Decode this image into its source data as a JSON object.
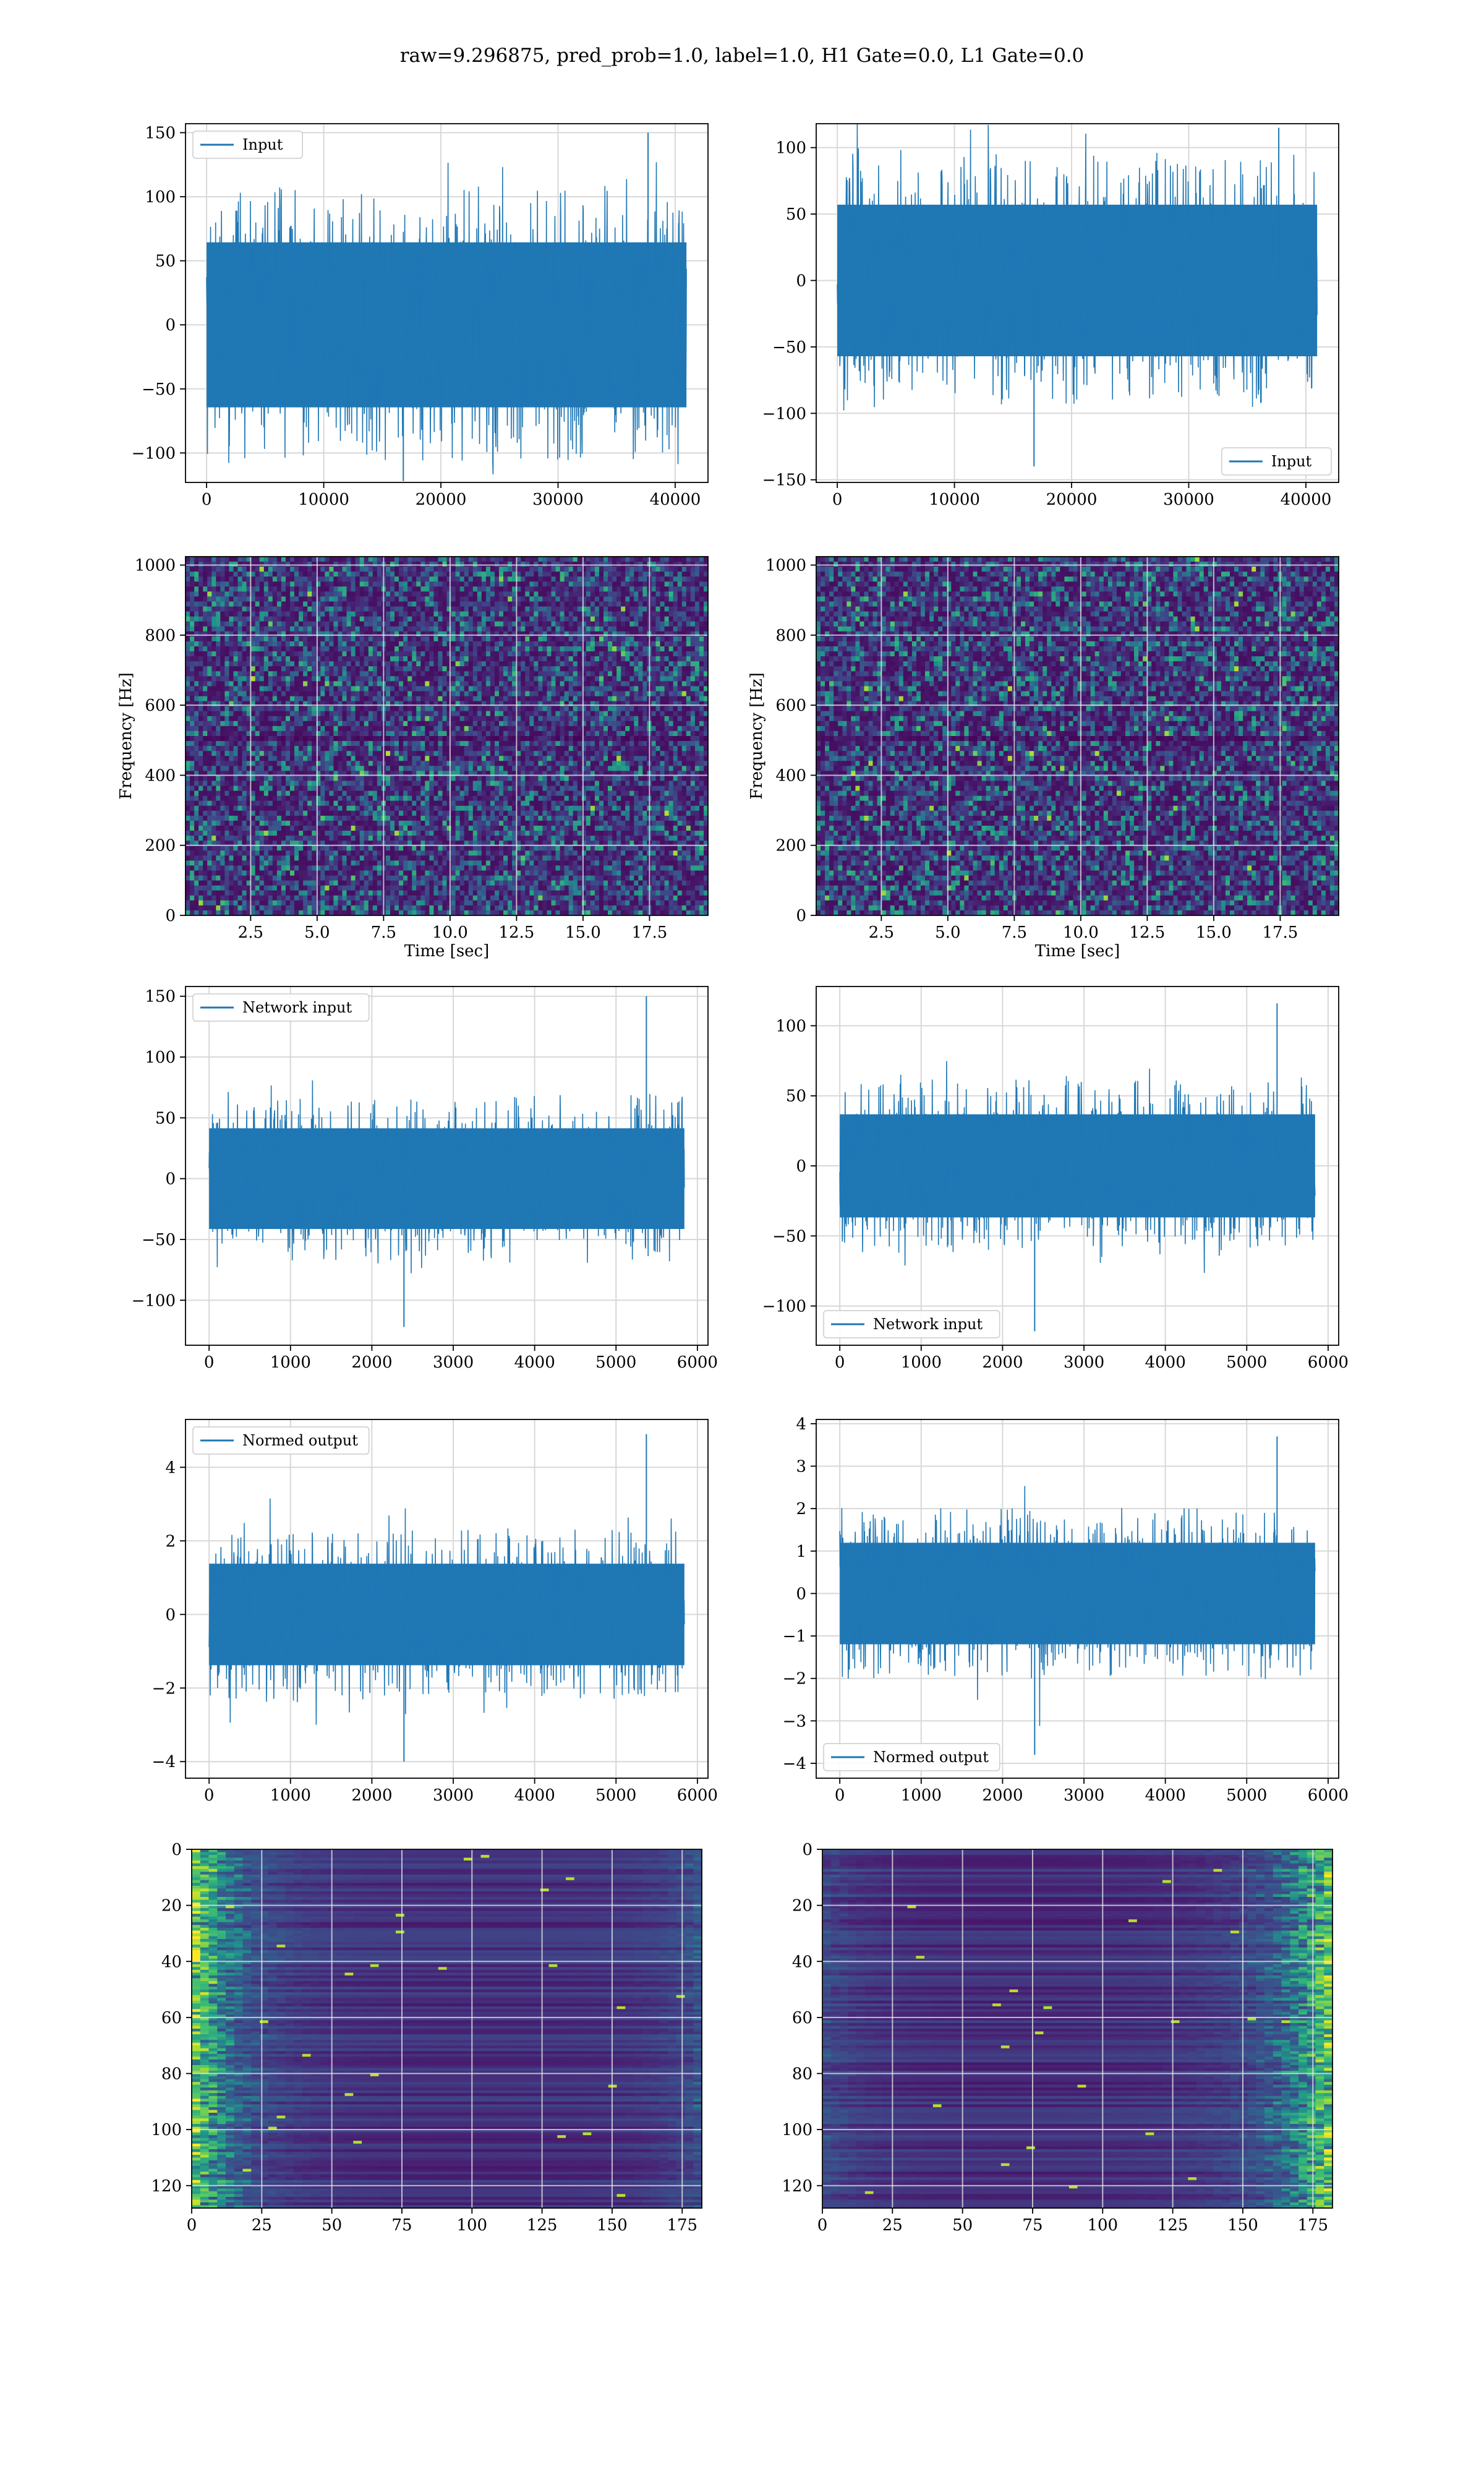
{
  "suptitle": "raw=9.296875, pred_prob=1.0, label=1.0, H1 Gate=0.0, L1 Gate=0.0",
  "colors": {
    "line": "#1f77b4",
    "grid": "#d8d8d8",
    "spine": "#000000",
    "viridis_low": "#440154",
    "viridis_mid": "#21918c",
    "viridis_high": "#fde725"
  },
  "chart_data": [
    {
      "id": "row1-left",
      "type": "line",
      "legend": "Input",
      "legend_loc": "upper left",
      "xlim": [
        -1800,
        42800
      ],
      "ylim": [
        -123,
        157
      ],
      "xticks": [
        0,
        10000,
        20000,
        30000,
        40000
      ],
      "xticklabels": [
        "0",
        "10000",
        "20000",
        "30000",
        "40000"
      ],
      "yticks": [
        -100,
        -50,
        0,
        50,
        100,
        150
      ],
      "yticklabels": [
        "−100",
        "−50",
        "0",
        "50",
        "100",
        "150"
      ],
      "signal": {
        "x_start": 0,
        "x_end": 40960,
        "core": 70,
        "peak_max": 150,
        "peak_min": -122
      },
      "grid": true
    },
    {
      "id": "row1-right",
      "type": "line",
      "legend": "Input",
      "legend_loc": "lower right",
      "xlim": [
        -1800,
        42800
      ],
      "ylim": [
        -152,
        118
      ],
      "xticks": [
        0,
        10000,
        20000,
        30000,
        40000
      ],
      "xticklabels": [
        "0",
        "10000",
        "20000",
        "30000",
        "40000"
      ],
      "yticks": [
        -150,
        -100,
        -50,
        0,
        50,
        100
      ],
      "yticklabels": [
        "−150",
        "−100",
        "−50",
        "0",
        "50",
        "100"
      ],
      "signal": {
        "x_start": 0,
        "x_end": 40960,
        "core": 62,
        "peak_max": 115,
        "peak_min": -140
      },
      "grid": true
    },
    {
      "id": "row2-left",
      "type": "heatmap",
      "xlabel": "Time [sec]",
      "ylabel": "Frequency [Hz]",
      "xlim": [
        0.05,
        19.7
      ],
      "ylim": [
        0,
        1024
      ],
      "xticks": [
        2.5,
        5.0,
        7.5,
        10.0,
        12.5,
        15.0,
        17.5
      ],
      "xticklabels": [
        "2.5",
        "5.0",
        "7.5",
        "10.0",
        "12.5",
        "15.0",
        "17.5"
      ],
      "yticks": [
        0,
        200,
        400,
        600,
        800,
        1000
      ],
      "yticklabels": [
        "0",
        "200",
        "400",
        "600",
        "800",
        "1000"
      ],
      "colormap": "viridis",
      "grid": true
    },
    {
      "id": "row2-right",
      "type": "heatmap",
      "xlabel": "Time [sec]",
      "ylabel": "Frequency [Hz]",
      "xlim": [
        0.05,
        19.7
      ],
      "ylim": [
        0,
        1024
      ],
      "xticks": [
        2.5,
        5.0,
        7.5,
        10.0,
        12.5,
        15.0,
        17.5
      ],
      "xticklabels": [
        "2.5",
        "5.0",
        "7.5",
        "10.0",
        "12.5",
        "15.0",
        "17.5"
      ],
      "yticks": [
        0,
        200,
        400,
        600,
        800,
        1000
      ],
      "yticklabels": [
        "0",
        "200",
        "400",
        "600",
        "800",
        "1000"
      ],
      "colormap": "viridis",
      "grid": true
    },
    {
      "id": "row3-left",
      "type": "line",
      "legend": "Network input",
      "legend_loc": "upper left",
      "xlim": [
        -290,
        6130
      ],
      "ylim": [
        -137,
        158
      ],
      "xticks": [
        0,
        1000,
        2000,
        3000,
        4000,
        5000,
        6000
      ],
      "xticklabels": [
        "0",
        "1000",
        "2000",
        "3000",
        "4000",
        "5000",
        "6000"
      ],
      "yticks": [
        -100,
        -50,
        0,
        50,
        100,
        150
      ],
      "yticklabels": [
        "−100",
        "−50",
        "0",
        "50",
        "100",
        "150"
      ],
      "signal": {
        "x_start": 0,
        "x_end": 5840,
        "core": 45,
        "peak_max": 150,
        "peak_min": -122
      },
      "grid": true
    },
    {
      "id": "row3-right",
      "type": "line",
      "legend": "Network input",
      "legend_loc": "lower left",
      "xlim": [
        -290,
        6130
      ],
      "ylim": [
        -128,
        128
      ],
      "xticks": [
        0,
        1000,
        2000,
        3000,
        4000,
        5000,
        6000
      ],
      "xticklabels": [
        "0",
        "1000",
        "2000",
        "3000",
        "4000",
        "5000",
        "6000"
      ],
      "yticks": [
        -100,
        -50,
        0,
        50,
        100
      ],
      "yticklabels": [
        "−100",
        "−50",
        "0",
        "50",
        "100"
      ],
      "signal": {
        "x_start": 0,
        "x_end": 5840,
        "core": 40,
        "peak_max": 116,
        "peak_min": -118
      },
      "grid": true
    },
    {
      "id": "row4-left",
      "type": "line",
      "legend": "Normed output",
      "legend_loc": "upper left",
      "xlim": [
        -290,
        6130
      ],
      "ylim": [
        -4.45,
        5.3
      ],
      "xticks": [
        0,
        1000,
        2000,
        3000,
        4000,
        5000,
        6000
      ],
      "xticklabels": [
        "0",
        "1000",
        "2000",
        "3000",
        "4000",
        "5000",
        "6000"
      ],
      "yticks": [
        -4,
        -2,
        0,
        2,
        4
      ],
      "yticklabels": [
        "−4",
        "−2",
        "0",
        "2",
        "4"
      ],
      "signal": {
        "x_start": 0,
        "x_end": 5840,
        "core": 1.5,
        "peak_max": 4.9,
        "peak_min": -4.0
      },
      "grid": true
    },
    {
      "id": "row4-right",
      "type": "line",
      "legend": "Normed output",
      "legend_loc": "lower left",
      "xlim": [
        -290,
        6130
      ],
      "ylim": [
        -4.35,
        4.1
      ],
      "xticks": [
        0,
        1000,
        2000,
        3000,
        4000,
        5000,
        6000
      ],
      "xticklabels": [
        "0",
        "1000",
        "2000",
        "3000",
        "4000",
        "5000",
        "6000"
      ],
      "yticks": [
        -4,
        -3,
        -2,
        -1,
        0,
        1,
        2,
        3,
        4
      ],
      "yticklabels": [
        "−4",
        "−3",
        "−2",
        "−1",
        "0",
        "1",
        "2",
        "3",
        "4"
      ],
      "signal": {
        "x_start": 0,
        "x_end": 5840,
        "core": 1.3,
        "peak_max": 3.7,
        "peak_min": -3.8
      },
      "grid": true
    },
    {
      "id": "row5-left",
      "type": "heatmap",
      "xlim": [
        0,
        182
      ],
      "ylim": [
        128,
        0
      ],
      "xticks": [
        0,
        25,
        50,
        75,
        100,
        125,
        150,
        175
      ],
      "xticklabels": [
        "0",
        "25",
        "50",
        "75",
        "100",
        "125",
        "150",
        "175"
      ],
      "yticks": [
        0,
        20,
        40,
        60,
        80,
        100,
        120
      ],
      "yticklabels": [
        "0",
        "20",
        "40",
        "60",
        "80",
        "100",
        "120"
      ],
      "colormap": "viridis",
      "bright_side": "left",
      "grid": true
    },
    {
      "id": "row5-right",
      "type": "heatmap",
      "xlim": [
        0,
        182
      ],
      "ylim": [
        128,
        0
      ],
      "xticks": [
        0,
        25,
        50,
        75,
        100,
        125,
        150,
        175
      ],
      "xticklabels": [
        "0",
        "25",
        "50",
        "75",
        "100",
        "125",
        "150",
        "175"
      ],
      "yticks": [
        0,
        20,
        40,
        60,
        80,
        100,
        120
      ],
      "yticklabels": [
        "0",
        "20",
        "40",
        "60",
        "80",
        "100",
        "120"
      ],
      "colormap": "viridis",
      "bright_side": "right",
      "grid": true
    }
  ]
}
